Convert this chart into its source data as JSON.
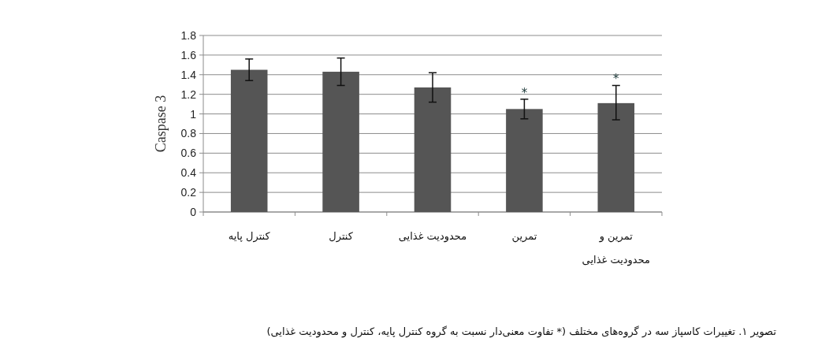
{
  "chart_data": {
    "type": "bar",
    "ylabel": "Caspase 3",
    "categories": [
      "کنترل پایه",
      "کنترل",
      "محدودیت غذایی",
      "تمرین",
      "تمرین و محدودیت غذایی"
    ],
    "values": [
      1.45,
      1.43,
      1.27,
      1.05,
      1.11
    ],
    "errors": [
      [
        1.34,
        1.56
      ],
      [
        1.29,
        1.57
      ],
      [
        1.12,
        1.42
      ],
      [
        0.95,
        1.15
      ],
      [
        0.94,
        1.29
      ]
    ],
    "color": "#555555",
    "ylim": [
      0,
      1.8
    ],
    "yticks": [
      0,
      0.2,
      0.4,
      0.6,
      0.8,
      1,
      1.2,
      1.4,
      1.6,
      1.8
    ],
    "grid": "y",
    "annotations": [
      {
        "text": "*",
        "x": "تمرین",
        "y": 1.15
      },
      {
        "text": "*",
        "x": "تمرین و محدودیت غذایی",
        "y": 1.29
      },
      "تصویر ۱. تغییرات کاسپاز سه در گروه‌های مختلف (* تفاوت معنی‌دار نسبت به گروه کنترل پایه، کنترل و محدودیت غذایی)"
    ]
  }
}
